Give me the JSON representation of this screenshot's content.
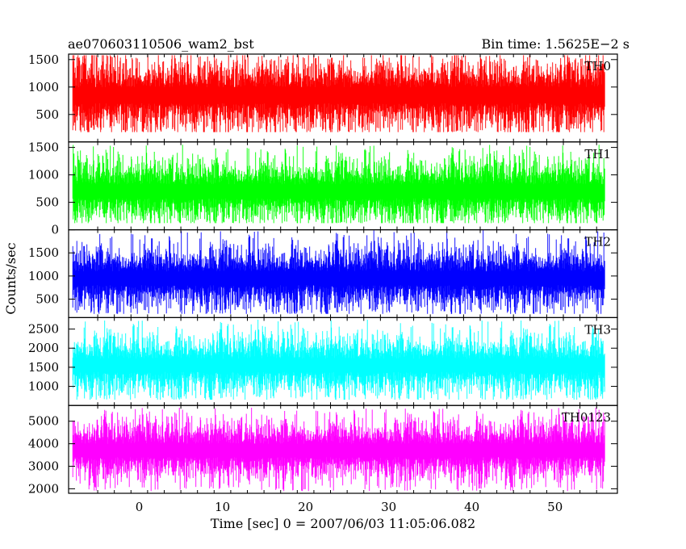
{
  "header": {
    "left_title": "ae070603110506_wam2_bst",
    "right_title": "Bin time: 1.5625E−2 s"
  },
  "chart_data": {
    "type": "line",
    "title": "ae070603110506_wam2_bst",
    "subtitle": "Bin time: 1.5625E−2 s",
    "xlabel": "Time [sec] 0 = 2007/06/03 11:05:06.082",
    "ylabel": "Counts/sec",
    "xlim": [
      -8.5,
      57.5
    ],
    "data_xrange": [
      -8,
      56
    ],
    "x_ticks": [
      0,
      10,
      20,
      30,
      40,
      50
    ],
    "grid": false,
    "panels": [
      {
        "name": "TH0",
        "color": "#ff0000",
        "ylim": [
          0,
          1600
        ],
        "ticks": [
          500,
          1000,
          1500
        ],
        "baseline": 850,
        "spread": 320,
        "spike_max": 1580,
        "floor": 180
      },
      {
        "name": "TH1",
        "color": "#00ff00",
        "ylim": [
          0,
          1600
        ],
        "ticks": [
          0,
          500,
          1000,
          1500
        ],
        "baseline": 700,
        "spread": 280,
        "spike_max": 1550,
        "floor": 120
      },
      {
        "name": "TH2",
        "color": "#0000ff",
        "ylim": [
          100,
          2000
        ],
        "ticks": [
          500,
          1000,
          1500
        ],
        "baseline": 950,
        "spread": 330,
        "spike_max": 1990,
        "floor": 180
      },
      {
        "name": "TH3",
        "color": "#00ffff",
        "ylim": [
          500,
          2800
        ],
        "ticks": [
          1000,
          1500,
          2000,
          2500
        ],
        "baseline": 1550,
        "spread": 380,
        "spike_max": 2750,
        "floor": 650
      },
      {
        "name": "TH0123",
        "color": "#ff00ff",
        "ylim": [
          1800,
          5700
        ],
        "ticks": [
          2000,
          3000,
          4000,
          5000
        ],
        "baseline": 3700,
        "spread": 650,
        "spike_max": 5600,
        "floor": 1900
      }
    ]
  }
}
